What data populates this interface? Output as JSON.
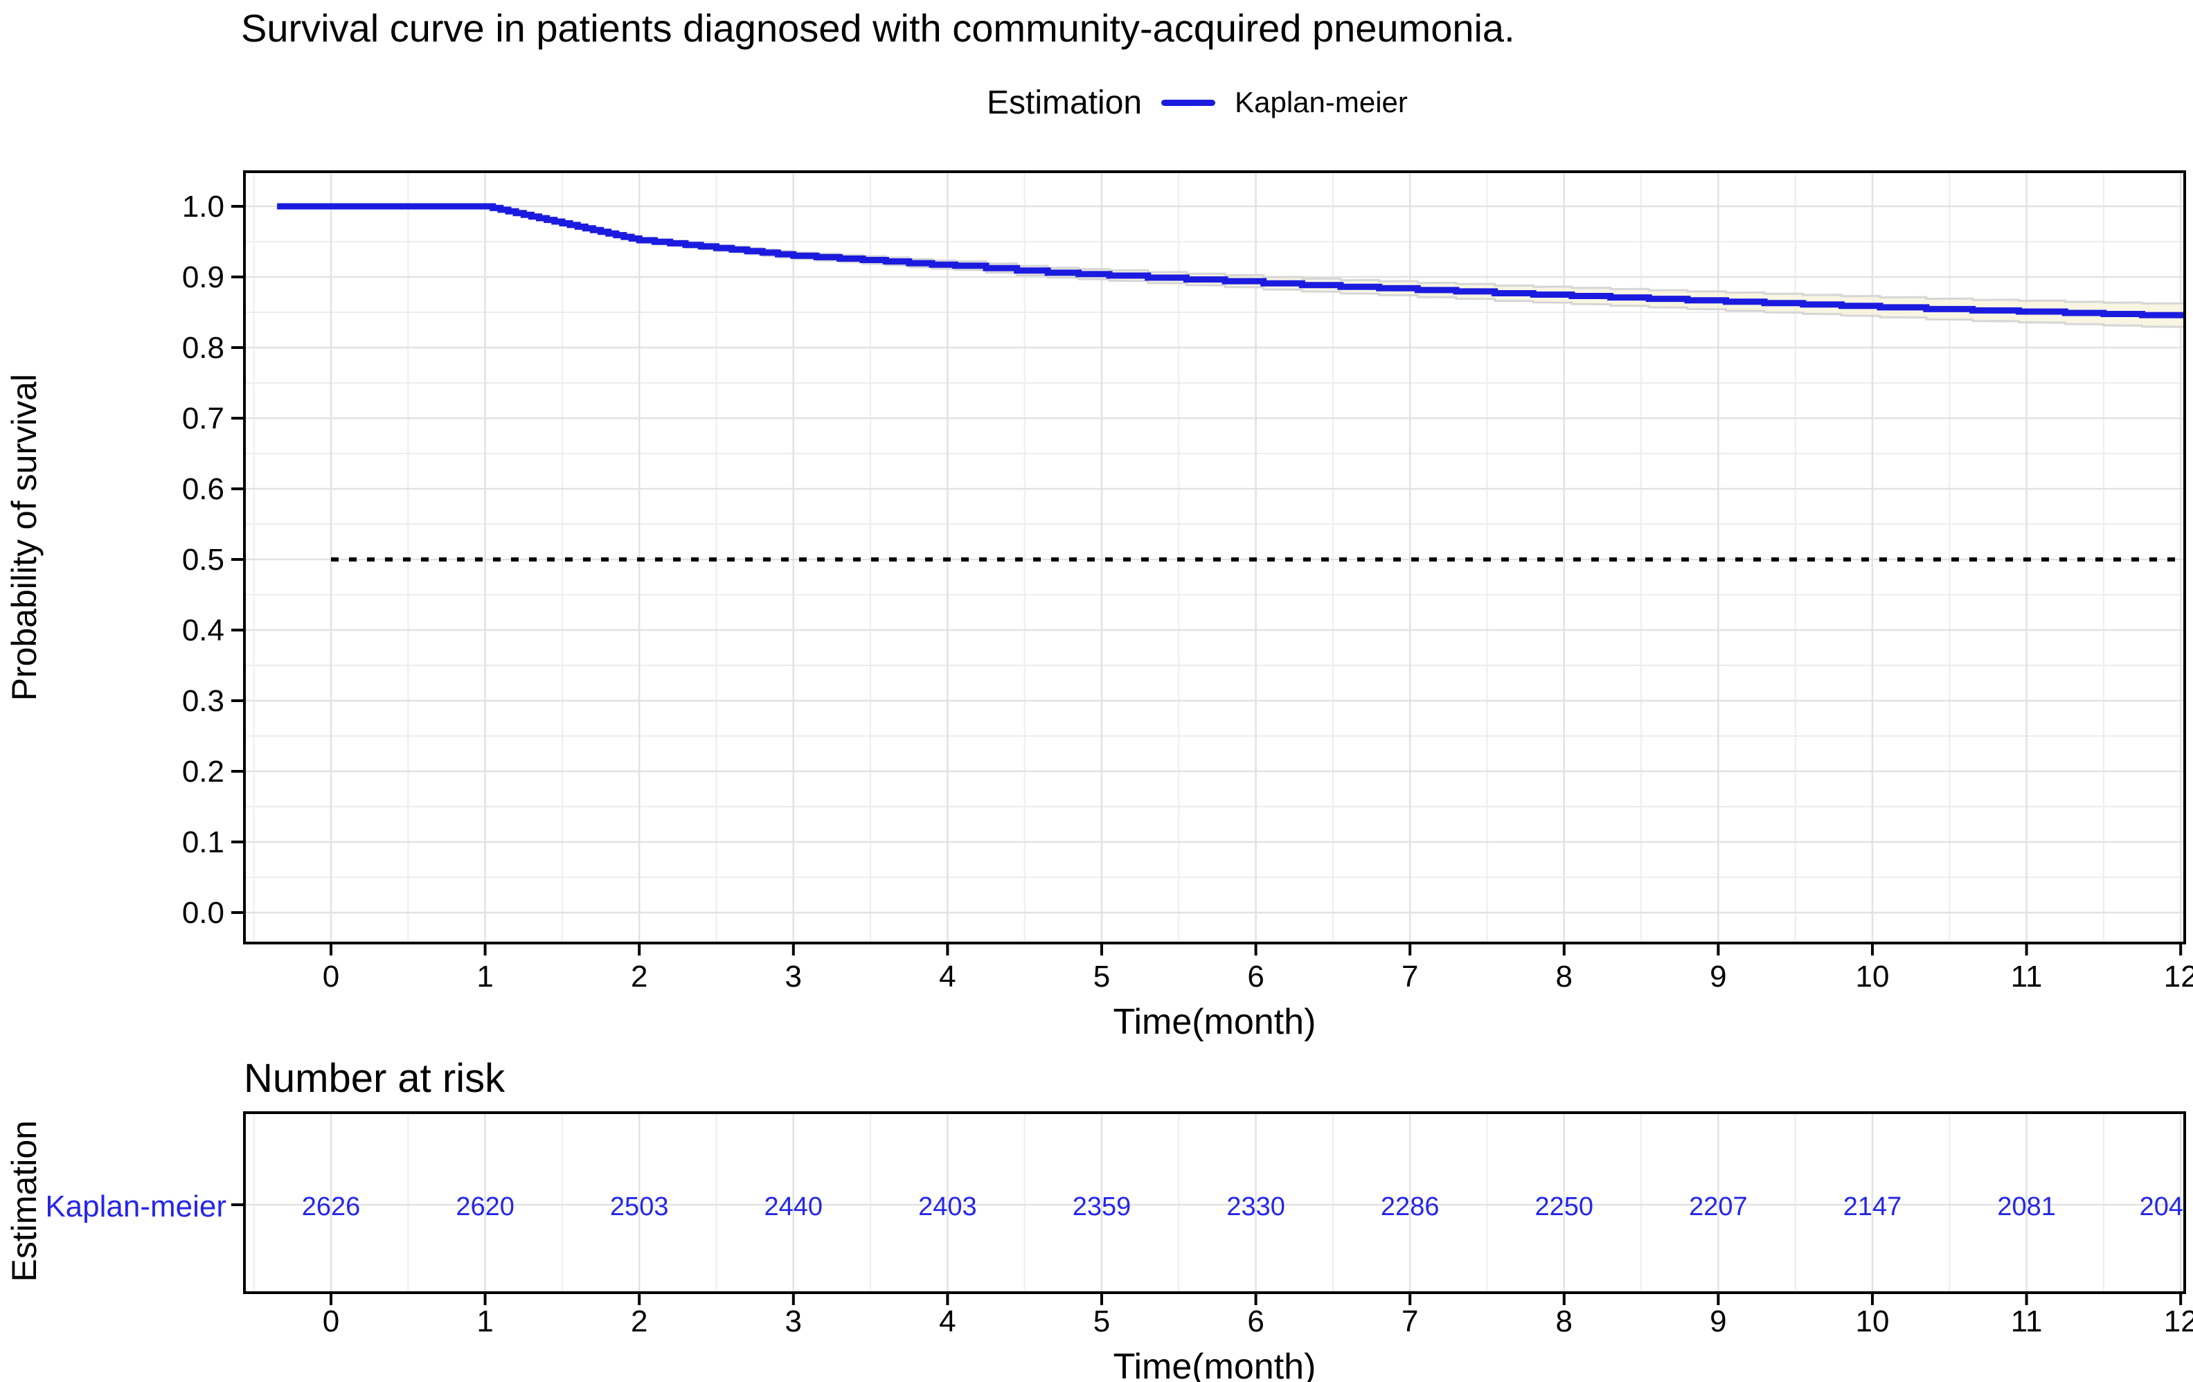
{
  "title": "Survival curve in patients diagnosed with community-acquired pneumonia.",
  "legend": {
    "title": "Estimation",
    "items": [
      {
        "label": "Kaplan-meier",
        "color": "#1b1bdf"
      }
    ]
  },
  "main_plot": {
    "x_label": "Time(month)",
    "y_label": "Probability of survival"
  },
  "risk_table": {
    "heading": "Number at risk",
    "y_axis_label": "Estimation",
    "row_label": "Kaplan-meier",
    "x_label": "Time(month)"
  },
  "colors": {
    "curve": "#1b1bdf",
    "risk_text": "#2626e8",
    "grid_major": "#e2e2e2",
    "grid_minor": "#ededed",
    "panel_border": "#000000",
    "tick": "#000000",
    "reference_line": "#000000",
    "ci_fill": "#f6f2d8",
    "ci_edge": "#d6d6d6",
    "background": "#ffffff"
  },
  "chart_data": {
    "type": "line",
    "subtype": "kaplan-meier-step",
    "title": "Survival curve in patients diagnosed with community-acquired pneumonia.",
    "xlabel": "Time(month)",
    "ylabel": "Probability of survival",
    "xlim": [
      -0.56,
      12.03
    ],
    "ylim": [
      -0.04,
      1.05
    ],
    "x_ticks": [
      0,
      1,
      2,
      3,
      4,
      5,
      6,
      7,
      8,
      9,
      10,
      11,
      12
    ],
    "y_ticks": [
      0.0,
      0.1,
      0.2,
      0.3,
      0.4,
      0.5,
      0.6,
      0.7,
      0.8,
      0.9,
      1.0
    ],
    "grid": true,
    "legend_position": "top",
    "reference_line": {
      "y": 0.5,
      "style": "dashed"
    },
    "series": [
      {
        "name": "Kaplan-meier",
        "color": "#1b1bdf",
        "steps": [
          [
            -0.35,
            1.0
          ],
          [
            1.05,
            0.9976
          ],
          [
            1.1,
            0.9952
          ],
          [
            1.15,
            0.9928
          ],
          [
            1.2,
            0.9904
          ],
          [
            1.25,
            0.988
          ],
          [
            1.3,
            0.9856
          ],
          [
            1.35,
            0.9832
          ],
          [
            1.4,
            0.9808
          ],
          [
            1.45,
            0.9784
          ],
          [
            1.5,
            0.976
          ],
          [
            1.55,
            0.9736
          ],
          [
            1.6,
            0.9712
          ],
          [
            1.65,
            0.9688
          ],
          [
            1.7,
            0.9664
          ],
          [
            1.75,
            0.964
          ],
          [
            1.8,
            0.9616
          ],
          [
            1.85,
            0.9592
          ],
          [
            1.9,
            0.9568
          ],
          [
            1.95,
            0.9544
          ],
          [
            2.0,
            0.952
          ],
          [
            2.1,
            0.9498
          ],
          [
            2.2,
            0.9476
          ],
          [
            2.3,
            0.9454
          ],
          [
            2.4,
            0.9432
          ],
          [
            2.5,
            0.941
          ],
          [
            2.6,
            0.9388
          ],
          [
            2.7,
            0.9366
          ],
          [
            2.8,
            0.9344
          ],
          [
            2.9,
            0.9322
          ],
          [
            3.0,
            0.93
          ],
          [
            3.15,
            0.928
          ],
          [
            3.3,
            0.926
          ],
          [
            3.45,
            0.924
          ],
          [
            3.6,
            0.922
          ],
          [
            3.75,
            0.9195
          ],
          [
            3.9,
            0.9175
          ],
          [
            4.05,
            0.916
          ],
          [
            4.25,
            0.9125
          ],
          [
            4.45,
            0.909
          ],
          [
            4.65,
            0.906
          ],
          [
            4.85,
            0.904
          ],
          [
            5.05,
            0.902
          ],
          [
            5.3,
            0.899
          ],
          [
            5.55,
            0.8965
          ],
          [
            5.8,
            0.894
          ],
          [
            6.05,
            0.891
          ],
          [
            6.3,
            0.8885
          ],
          [
            6.55,
            0.886
          ],
          [
            6.8,
            0.884
          ],
          [
            7.05,
            0.8815
          ],
          [
            7.3,
            0.8795
          ],
          [
            7.55,
            0.877
          ],
          [
            7.8,
            0.875
          ],
          [
            8.05,
            0.873
          ],
          [
            8.3,
            0.871
          ],
          [
            8.55,
            0.869
          ],
          [
            8.8,
            0.867
          ],
          [
            9.05,
            0.865
          ],
          [
            9.3,
            0.863
          ],
          [
            9.55,
            0.861
          ],
          [
            9.8,
            0.859
          ],
          [
            10.05,
            0.857
          ],
          [
            10.35,
            0.8545
          ],
          [
            10.65,
            0.8525
          ],
          [
            10.95,
            0.851
          ],
          [
            11.25,
            0.849
          ],
          [
            11.5,
            0.8475
          ],
          [
            11.75,
            0.846
          ]
        ]
      }
    ],
    "ci": {
      "halfwidth_intercept": 0.0005,
      "halfwidth_per_month": 0.00135
    },
    "number_at_risk": {
      "row": "Kaplan-meier",
      "times": [
        0,
        1,
        2,
        3,
        4,
        5,
        6,
        7,
        8,
        9,
        10,
        11,
        12
      ],
      "counts": [
        "2626",
        "2620",
        "2503",
        "2440",
        "2403",
        "2359",
        "2330",
        "2286",
        "2250",
        "2207",
        "2147",
        "2081",
        "204"
      ]
    }
  }
}
